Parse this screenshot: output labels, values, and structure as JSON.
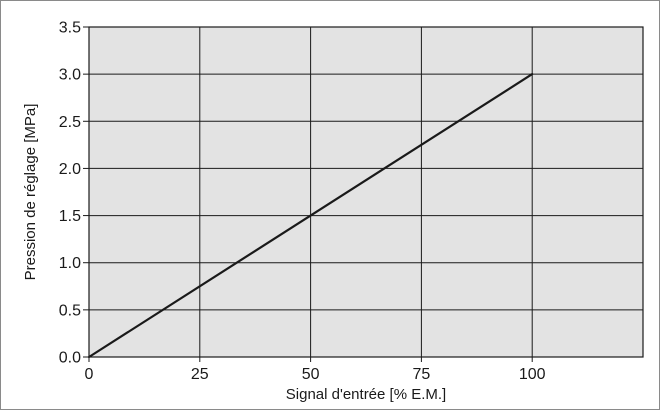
{
  "chart_data": {
    "type": "line",
    "title": "",
    "xlabel": "Signal d'entrée [% E.M.]",
    "ylabel": "Pression de réglage [MPa]",
    "xlim": [
      0,
      125
    ],
    "ylim": [
      0,
      3.5
    ],
    "x_ticks": [
      0,
      25,
      50,
      75,
      100
    ],
    "y_ticks": [
      0.0,
      0.5,
      1.0,
      1.5,
      2.0,
      2.5,
      3.0,
      3.5
    ],
    "x_tick_labels": [
      "0",
      "25",
      "50",
      "75",
      "100"
    ],
    "y_tick_labels": [
      "0.0",
      "0.5",
      "1.0",
      "1.5",
      "2.0",
      "2.5",
      "3.0",
      "3.5"
    ],
    "grid": true,
    "background_color": "#e3e3e3",
    "line_color": "#1a1a1a",
    "series": [
      {
        "x": [
          0,
          100
        ],
        "values": [
          0.0,
          3.0
        ]
      }
    ]
  }
}
